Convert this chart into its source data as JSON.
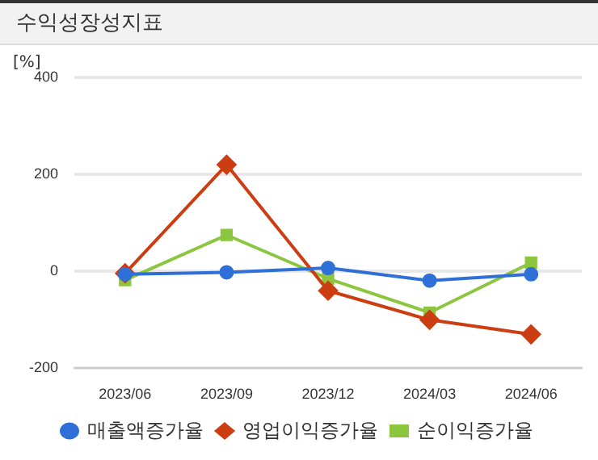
{
  "chart_data": {
    "type": "line",
    "title": "수익성장성지표",
    "ylabel": "[%]",
    "categories": [
      "2023/06",
      "2023/09",
      "2023/12",
      "2024/03",
      "2024/06"
    ],
    "series": [
      {
        "name": "매출액증가율",
        "color": "#2f6fd8",
        "marker": "circle",
        "values": [
          -6,
          -2,
          7,
          -19,
          -6
        ]
      },
      {
        "name": "영업이익증가율",
        "color": "#cc3d12",
        "marker": "diamond",
        "values": [
          -4,
          220,
          -40,
          -100,
          -130
        ]
      },
      {
        "name": "순이익증가율",
        "color": "#8cc63f",
        "marker": "square",
        "values": [
          -18,
          75,
          -15,
          -85,
          18
        ]
      }
    ],
    "ylim": [
      -200,
      400
    ],
    "yticks": [
      -200,
      0,
      200,
      400
    ],
    "grid": "y",
    "legend": "bottom"
  }
}
